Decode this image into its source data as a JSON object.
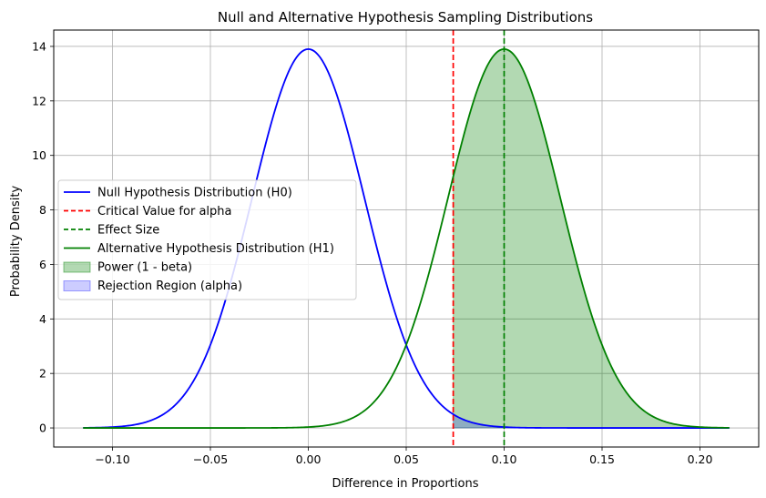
{
  "chart_data": {
    "type": "line",
    "title": "Null and Alternative Hypothesis Sampling Distributions",
    "xlabel": "Difference in Proportions",
    "ylabel": "Probability Density",
    "xlim": [
      -0.13,
      0.23
    ],
    "ylim": [
      -0.7,
      14.6
    ],
    "xticks": [
      -0.1,
      -0.05,
      0.0,
      0.05,
      0.1,
      0.15,
      0.2
    ],
    "xtick_labels": [
      "−0.10",
      "−0.05",
      "0.00",
      "0.05",
      "0.10",
      "0.15",
      "0.20"
    ],
    "yticks": [
      0,
      2,
      4,
      6,
      8,
      10,
      12,
      14
    ],
    "ytick_labels": [
      "0",
      "2",
      "4",
      "6",
      "8",
      "10",
      "12",
      "14"
    ],
    "grid": true,
    "legend_position": "center-left",
    "x_range": [
      -0.115,
      0.215
    ],
    "series": [
      {
        "name": "Null Hypothesis Distribution (H0)",
        "kind": "normal-pdf",
        "mean": 0.0,
        "sd": 0.0287,
        "color": "#0000ff",
        "style": "solid"
      },
      {
        "name": "Critical Value for alpha",
        "kind": "vline",
        "x": 0.074,
        "color": "#ff0000",
        "style": "dashed"
      },
      {
        "name": "Effect Size",
        "kind": "vline",
        "x": 0.1,
        "color": "#008000",
        "style": "dashed"
      },
      {
        "name": "Alternative Hypothesis Distribution (H1)",
        "kind": "normal-pdf",
        "mean": 0.1,
        "sd": 0.0287,
        "color": "#008000",
        "style": "solid"
      },
      {
        "name": "Power (1 - beta)",
        "kind": "fill",
        "under": "H1",
        "from": 0.074,
        "to": 0.215,
        "color": "#008000",
        "opacity": 0.3
      },
      {
        "name": "Rejection Region (alpha)",
        "kind": "fill",
        "under": "H0",
        "from": 0.074,
        "to": 0.215,
        "color": "#0000ff",
        "opacity": 0.2
      }
    ]
  }
}
